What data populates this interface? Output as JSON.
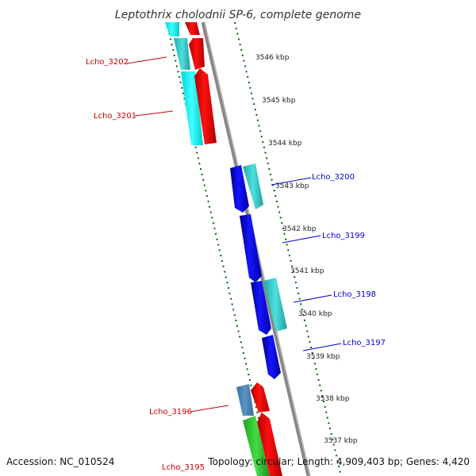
{
  "title": "Leptothrix cholodnii SP-6, complete genome",
  "footer": {
    "accession": "Accession: NC_010524",
    "topology": "Topology: circular; Length: 4,909,403 bp; Genes: 4,420"
  },
  "scale_labels": [
    "3546 kbp",
    "3545 kbp",
    "3544 kbp",
    "3543 kbp",
    "3542 kbp",
    "3541 kbp",
    "3540 kbp",
    "3539 kbp",
    "3538 kbp",
    "3537 kbp"
  ],
  "genes": [
    {
      "name": "Lcho_3202",
      "strand": "reverse",
      "color": "#cc0000"
    },
    {
      "name": "Lcho_3201",
      "strand": "reverse",
      "color": "#cc0000"
    },
    {
      "name": "Lcho_3200",
      "strand": "forward",
      "color": "#0000cc"
    },
    {
      "name": "Lcho_3199",
      "strand": "forward",
      "color": "#0000cc"
    },
    {
      "name": "Lcho_3198",
      "strand": "forward",
      "color": "#0000cc"
    },
    {
      "name": "Lcho_3197",
      "strand": "forward",
      "color": "#0000cc"
    },
    {
      "name": "Lcho_3196",
      "strand": "reverse",
      "color": "#cc0000"
    },
    {
      "name": "Lcho_3195",
      "strand": "reverse",
      "color": "#cc0000"
    }
  ],
  "colors": {
    "cds_reverse": "#ff0000",
    "cds_forward": "#0000ee",
    "annotation_cyan": "#00ffff",
    "annotation_teal": "#33cccc",
    "annotation_steel": "#4682b4",
    "annotation_green": "#33cc33",
    "backbone": "#888888",
    "scale_tick": "#006400"
  }
}
